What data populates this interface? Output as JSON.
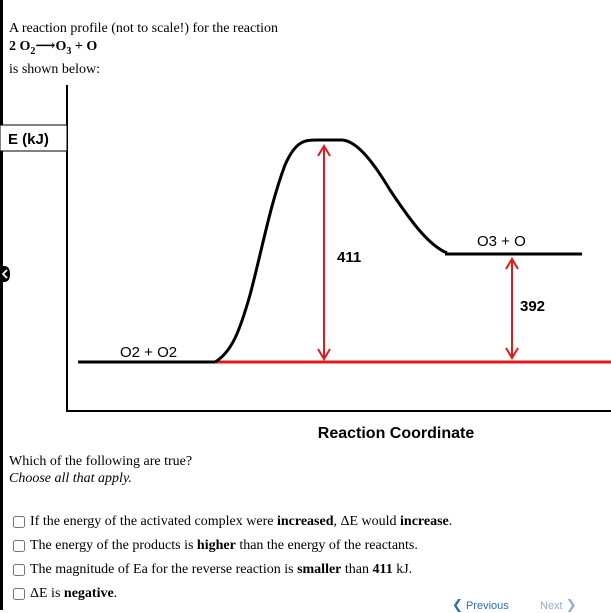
{
  "intro": {
    "line1": "A reaction profile (not to scale!) for the reaction",
    "equation": {
      "coef": "2",
      "reactant": "O",
      "reactant_sub": "2",
      "arrow": "⟶",
      "product1": "O",
      "product1_sub": "3",
      "plus": " + ",
      "product2": "O"
    },
    "line3": "is shown below:"
  },
  "diagram": {
    "y_axis_label": "E (kJ)",
    "x_axis_label": "Reaction Coordinate",
    "reactants_label": "O2 + O2",
    "products_label": "O3 + O",
    "activation_energy_value": "411",
    "delta_e_value": "392",
    "curve_color": "#000000",
    "arrow_color": "#e01b1b"
  },
  "question": {
    "prompt": "Which of the following are true?",
    "hint": "Choose all that apply."
  },
  "options": [
    {
      "pre": "If the energy of the activated complex were ",
      "b1": "increased",
      "mid": ", ΔE would ",
      "b2": "increase",
      "post": "."
    },
    {
      "pre": "The energy of the products is ",
      "b1": "higher",
      "mid": " than the energy of the reactants.",
      "b2": "",
      "post": ""
    },
    {
      "pre": "The magnitude of Ea for the reverse reaction is ",
      "b1": "smaller",
      "mid": " than ",
      "b2": "411",
      "post": " kJ."
    },
    {
      "pre": "ΔE is ",
      "b1": "negative",
      "mid": ".",
      "b2": "",
      "post": ""
    }
  ],
  "navigation": {
    "previous_label": "Previous",
    "next_label": "Next",
    "previous_icon": "chevron-left-icon",
    "next_icon": "chevron-right-icon"
  }
}
